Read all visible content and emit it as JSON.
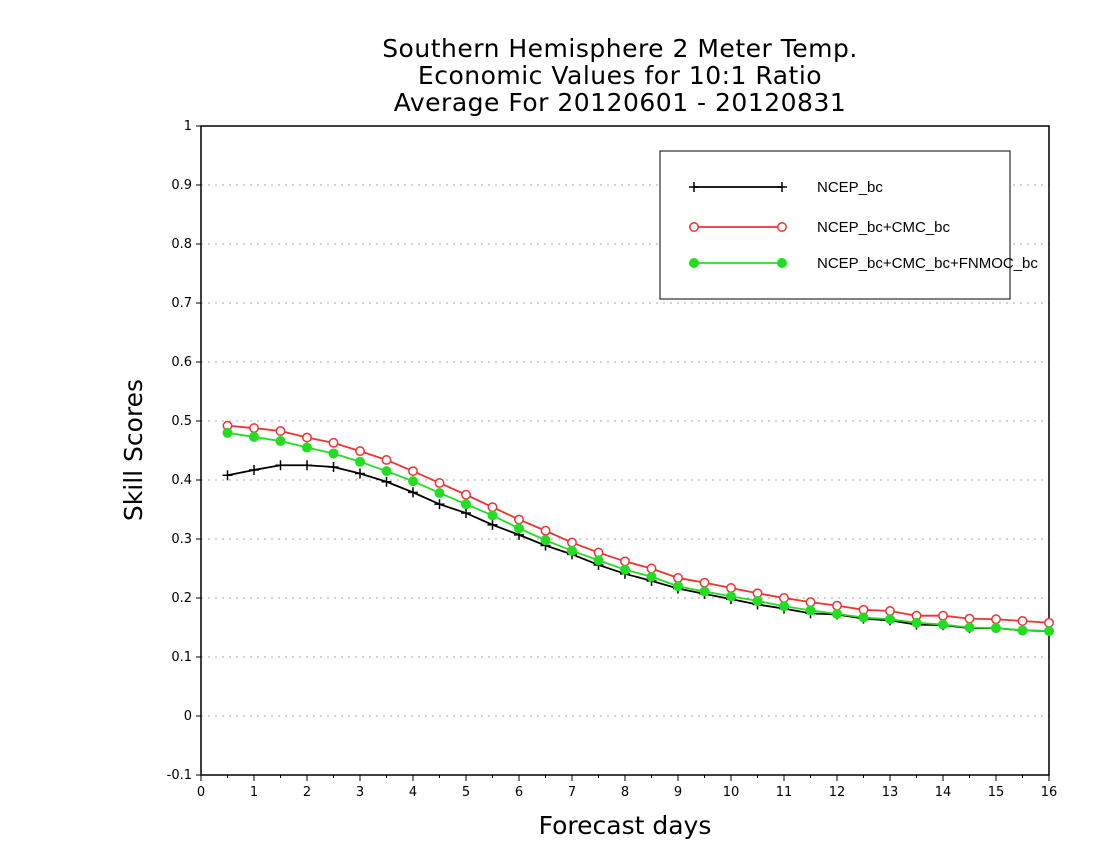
{
  "chart_data": {
    "type": "line",
    "title_lines": [
      "Southern Hemisphere 2 Meter Temp.",
      "Economic Values for 10:1 Ratio",
      "Average For 20120601 - 20120831"
    ],
    "xlabel": "Forecast days",
    "ylabel": "Skill Scores",
    "xlim": [
      0,
      16
    ],
    "ylim": [
      -0.1,
      1
    ],
    "xticks": [
      0,
      1,
      2,
      3,
      4,
      5,
      6,
      7,
      8,
      9,
      10,
      11,
      12,
      13,
      14,
      15,
      16
    ],
    "yticks": [
      -0.1,
      0,
      0.1,
      0.2,
      0.3,
      0.4,
      0.5,
      0.6,
      0.7,
      0.8,
      0.9,
      1
    ],
    "ytick_labels": [
      "-0.1",
      "0",
      "0.1",
      "0.2",
      "0.3",
      "0.4",
      "0.5",
      "0.6",
      "0.7",
      "0.8",
      "0.9",
      "1"
    ],
    "grid": "horizontal dotted",
    "legend_position": "top-right",
    "x": [
      0.5,
      1,
      1.5,
      2,
      2.5,
      3,
      3.5,
      4,
      4.5,
      5,
      5.5,
      6,
      6.5,
      7,
      7.5,
      8,
      8.5,
      9,
      9.5,
      10,
      10.5,
      11,
      11.5,
      12,
      12.5,
      13,
      13.5,
      14,
      14.5,
      15,
      15.5,
      16
    ],
    "series": [
      {
        "name": "NCEP_bc",
        "color": "#000000",
        "marker": "plus",
        "values": [
          0.408,
          0.417,
          0.425,
          0.425,
          0.422,
          0.411,
          0.397,
          0.379,
          0.359,
          0.344,
          0.324,
          0.307,
          0.289,
          0.274,
          0.256,
          0.241,
          0.229,
          0.216,
          0.207,
          0.198,
          0.189,
          0.182,
          0.174,
          0.172,
          0.165,
          0.162,
          0.155,
          0.154,
          0.149,
          0.149,
          0.145,
          0.144
        ]
      },
      {
        "name": "NCEP_bc+CMC_bc",
        "color": "#ee3333",
        "marker": "open-circle",
        "values": [
          0.492,
          0.488,
          0.483,
          0.472,
          0.463,
          0.449,
          0.434,
          0.415,
          0.395,
          0.375,
          0.354,
          0.333,
          0.314,
          0.294,
          0.277,
          0.262,
          0.25,
          0.234,
          0.226,
          0.217,
          0.208,
          0.2,
          0.193,
          0.187,
          0.18,
          0.178,
          0.17,
          0.17,
          0.165,
          0.164,
          0.161,
          0.158
        ]
      },
      {
        "name": "NCEP_bc+CMC_bc+FNMOC_bc",
        "color": "#22dd22",
        "marker": "filled-circle",
        "values": [
          0.48,
          0.473,
          0.466,
          0.455,
          0.445,
          0.431,
          0.415,
          0.398,
          0.378,
          0.359,
          0.34,
          0.318,
          0.298,
          0.28,
          0.264,
          0.248,
          0.236,
          0.22,
          0.211,
          0.203,
          0.195,
          0.186,
          0.179,
          0.173,
          0.167,
          0.164,
          0.158,
          0.155,
          0.15,
          0.149,
          0.145,
          0.144
        ]
      }
    ]
  }
}
